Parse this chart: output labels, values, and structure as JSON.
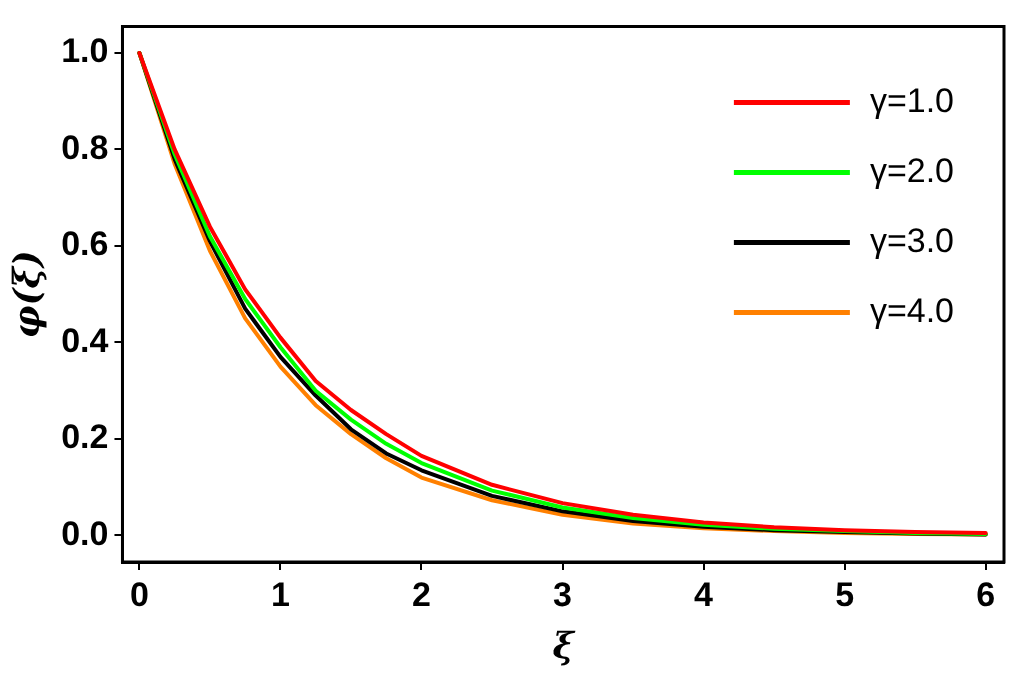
{
  "chart_data": {
    "type": "line",
    "xlabel": "ξ",
    "ylabel": "φ(ξ)",
    "x": [
      0,
      0.25,
      0.5,
      0.75,
      1,
      1.25,
      1.5,
      1.75,
      2,
      2.5,
      3,
      3.5,
      4,
      4.5,
      5,
      5.5,
      6
    ],
    "series": [
      {
        "name": "γ=1.0",
        "color": "#ff0000",
        "values": [
          1.0,
          0.8,
          0.64,
          0.51,
          0.41,
          0.32,
          0.26,
          0.21,
          0.165,
          0.105,
          0.067,
          0.043,
          0.027,
          0.017,
          0.011,
          0.007,
          0.005
        ]
      },
      {
        "name": "γ=2.0",
        "color": "#00ff00",
        "values": [
          1.0,
          0.79,
          0.62,
          0.49,
          0.39,
          0.3,
          0.24,
          0.19,
          0.15,
          0.093,
          0.058,
          0.036,
          0.022,
          0.014,
          0.009,
          0.005,
          0.003
        ]
      },
      {
        "name": "γ=3.0",
        "color": "#000000",
        "values": [
          1.0,
          0.78,
          0.61,
          0.47,
          0.37,
          0.29,
          0.22,
          0.17,
          0.135,
          0.082,
          0.05,
          0.03,
          0.018,
          0.011,
          0.007,
          0.004,
          0.002
        ]
      },
      {
        "name": "γ=4.0",
        "color": "#ff8000",
        "values": [
          1.0,
          0.77,
          0.59,
          0.45,
          0.35,
          0.27,
          0.21,
          0.16,
          0.12,
          0.073,
          0.043,
          0.025,
          0.015,
          0.009,
          0.005,
          0.003,
          0.002
        ]
      }
    ],
    "xlim": [
      -0.12,
      6.13
    ],
    "ylim": [
      -0.055,
      1.055
    ],
    "xticks": [
      0,
      1,
      2,
      3,
      4,
      5,
      6
    ],
    "yticks": [
      {
        "value": 0,
        "label": "0.0"
      },
      {
        "value": 0.2,
        "label": "0.2"
      },
      {
        "value": 0.4,
        "label": "0.4"
      },
      {
        "value": 0.6,
        "label": "0.6"
      },
      {
        "value": 0.8,
        "label": "0.8"
      },
      {
        "value": 1,
        "label": "1.0"
      }
    ],
    "grid": false,
    "legend": "top right",
    "marker": "none",
    "line_style": "solid"
  }
}
